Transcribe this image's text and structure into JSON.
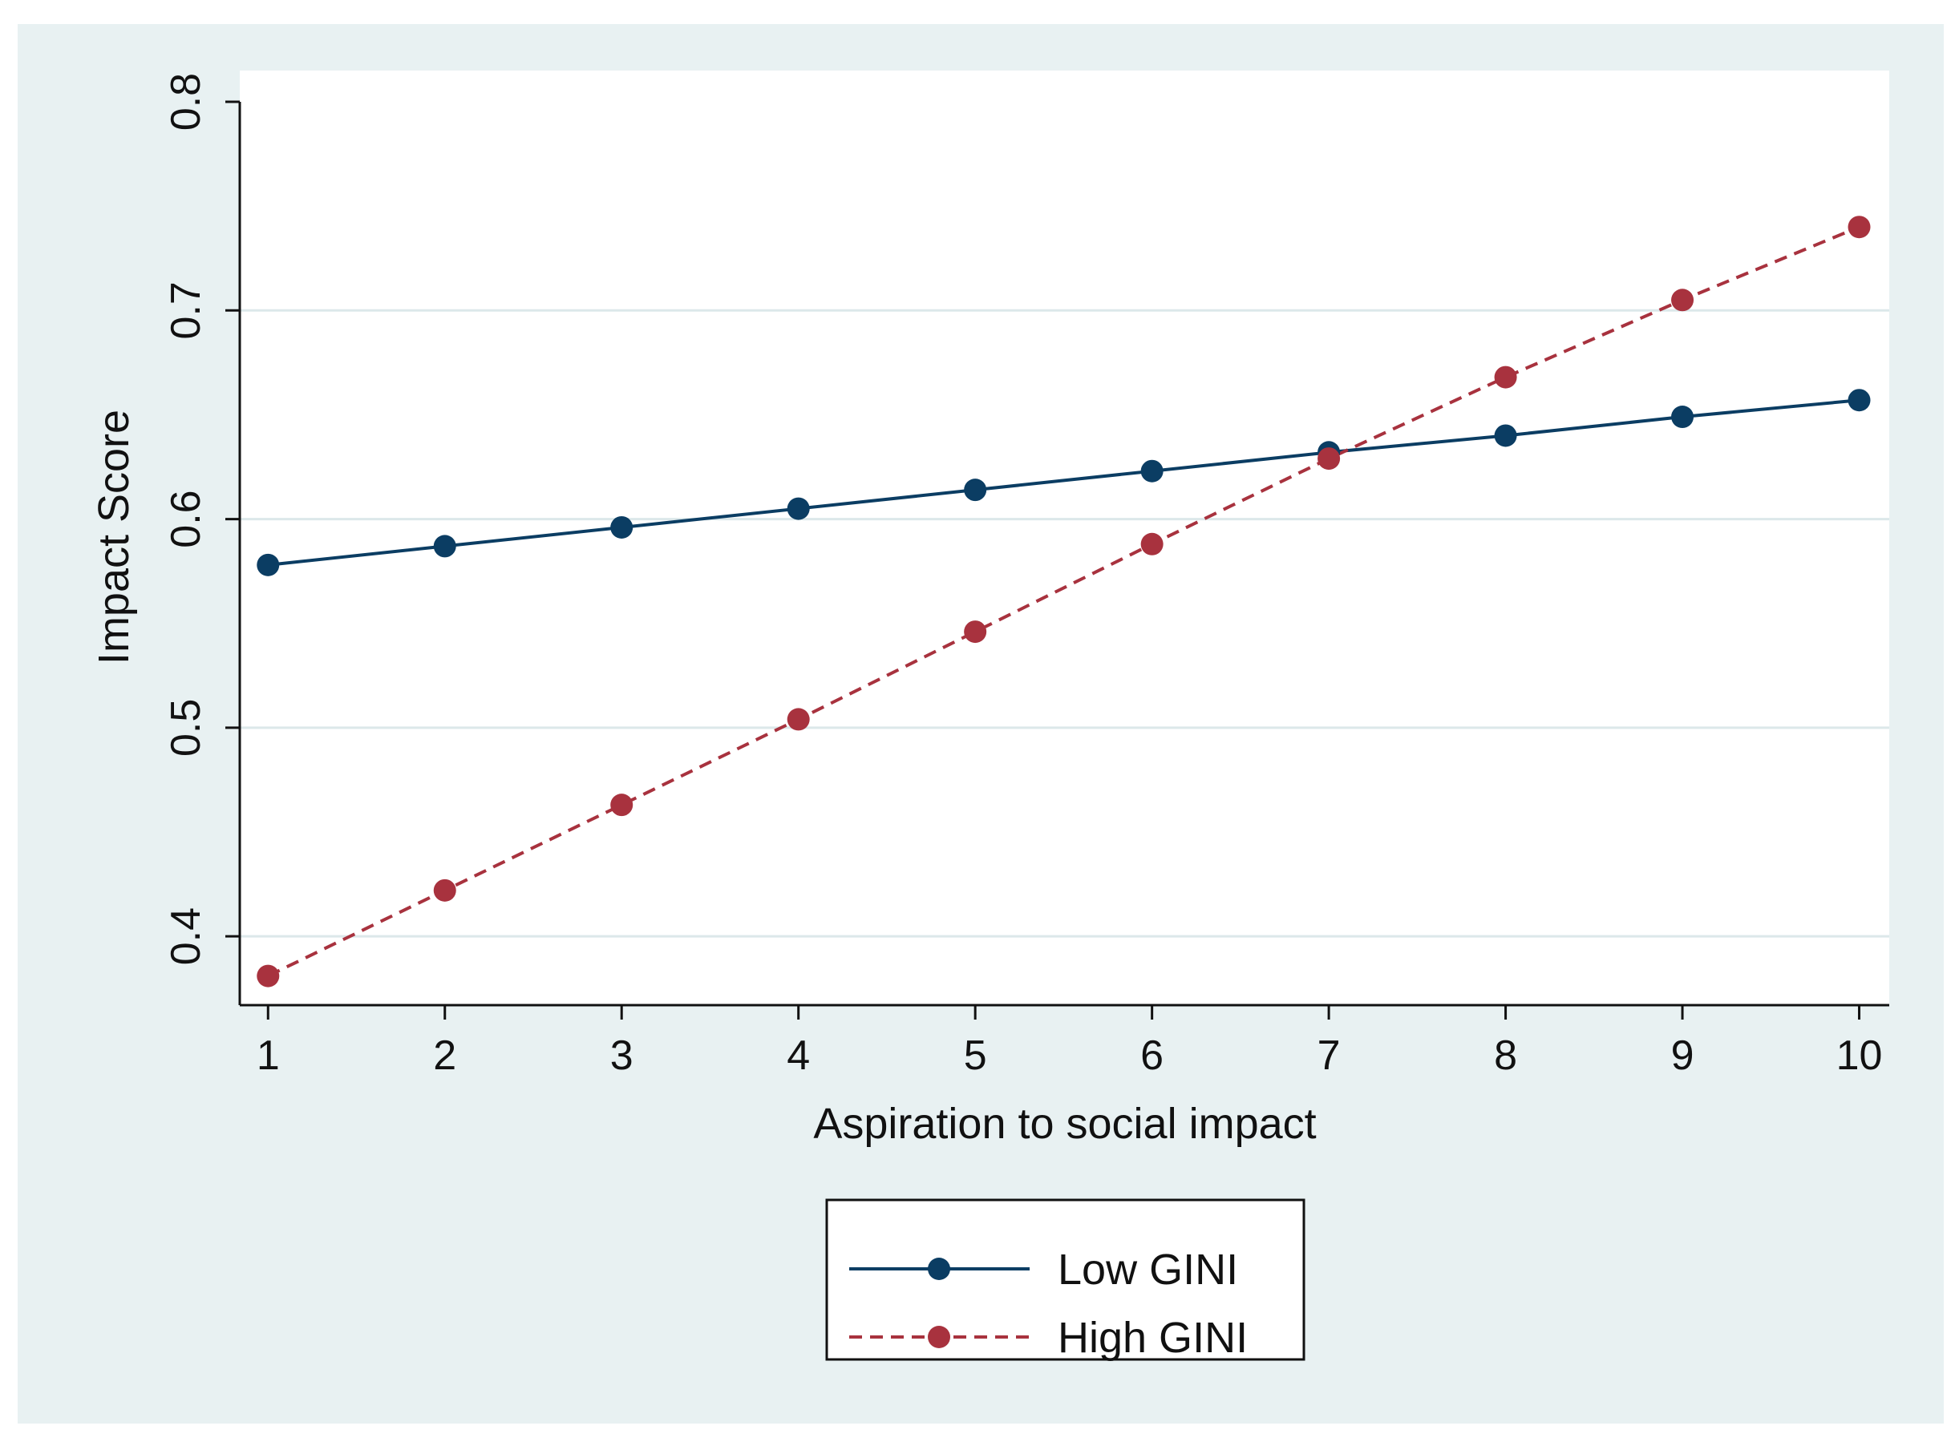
{
  "chart_data": {
    "type": "line",
    "title": "",
    "xlabel": "Aspiration to social impact",
    "ylabel": "Impact Score",
    "x": [
      1,
      2,
      3,
      4,
      5,
      6,
      7,
      8,
      9,
      10
    ],
    "xticks": [
      "1",
      "2",
      "3",
      "4",
      "5",
      "6",
      "7",
      "8",
      "9",
      "10"
    ],
    "yticks": [
      0.4,
      0.5,
      0.6,
      0.7,
      0.8
    ],
    "ytick_labels": [
      "0.4",
      "0.5",
      "0.6",
      "0.7",
      "0.8"
    ],
    "xlim": [
      0.84,
      10.17
    ],
    "ylim": [
      0.367,
      0.815
    ],
    "grid": true,
    "legend_position": "bottom-center",
    "series": [
      {
        "name": "Low GINI",
        "color": "#0b3d63",
        "line_style": "solid",
        "marker": "circle",
        "values": [
          0.578,
          0.587,
          0.596,
          0.605,
          0.614,
          0.623,
          0.632,
          0.64,
          0.649,
          0.657
        ]
      },
      {
        "name": "High GINI",
        "color": "#a8323e",
        "line_style": "dashed",
        "marker": "circle",
        "values": [
          0.381,
          0.422,
          0.463,
          0.504,
          0.546,
          0.588,
          0.629,
          0.668,
          0.705,
          0.74
        ]
      }
    ]
  }
}
